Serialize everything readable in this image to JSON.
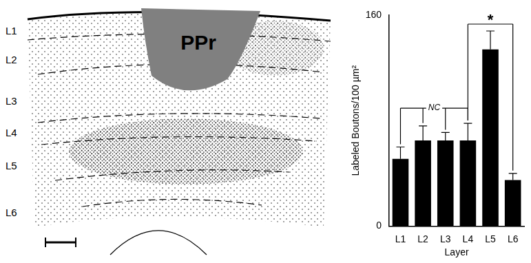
{
  "chart_data": {
    "type": "bar",
    "categories": [
      "L1",
      "L2",
      "L3",
      "L4",
      "L5",
      "L6"
    ],
    "values": [
      51,
      65,
      65,
      65,
      134,
      35
    ],
    "errors": [
      9,
      11,
      6,
      13,
      14,
      5
    ],
    "color": "#000000",
    "ylim": [
      0,
      160
    ],
    "yticks": [
      0,
      160
    ],
    "grid": false,
    "x_label": "Layer",
    "y_label": "Labeled Boutons/100 µm²",
    "annotations": [
      {
        "text": "NC",
        "from": "L1",
        "to": "L4"
      },
      {
        "text": "*",
        "from": "L4",
        "to": "L6"
      }
    ]
  },
  "panel_left": {
    "region_label": "PPr",
    "layer_labels": [
      "L1",
      "L2",
      "L3",
      "L4",
      "L5",
      "L6"
    ]
  }
}
